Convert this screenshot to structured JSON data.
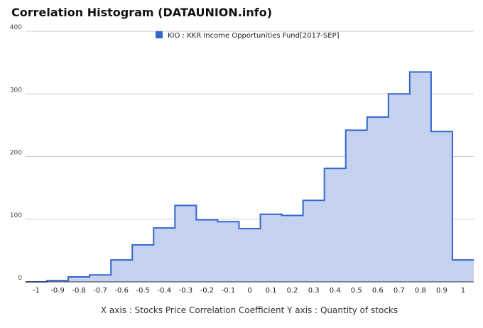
{
  "chart_data": {
    "type": "area",
    "title": "Correlation Histogram (DATAUNION.info)",
    "x_caption": "X axis : Stocks Price Correlation Coefficient  Y axis : Quantity of stocks",
    "x_tick_labels": [
      "-1",
      "-0.9",
      "-0.8",
      "-0.7",
      "-0.6",
      "-0.5",
      "-0.4",
      "-0.3",
      "-0.2",
      "-0.1",
      "0",
      "0.1",
      "0.2",
      "0.3",
      "0.4",
      "0.5",
      "0.6",
      "0.7",
      "0.8",
      "0.9",
      "1"
    ],
    "y_tick_labels": [
      "0",
      "100",
      "200",
      "300",
      "400"
    ],
    "ylim": [
      0,
      400
    ],
    "xlim": [
      -1.05,
      1.05
    ],
    "grid": true,
    "legend_position": "top",
    "series": [
      {
        "name": "KIO : KKR Income Opportunities Fund[2017-SEP]",
        "color": "#3366cc",
        "fill": "#c5d1f1",
        "x": [
          -1,
          -0.9,
          -0.8,
          -0.7,
          -0.6,
          -0.5,
          -0.4,
          -0.3,
          -0.2,
          -0.1,
          0,
          0.1,
          0.2,
          0.3,
          0.4,
          0.5,
          0.6,
          0.7,
          0.8,
          0.9,
          1
        ],
        "values": [
          0,
          2,
          8,
          11,
          35,
          59,
          86,
          122,
          99,
          96,
          85,
          108,
          106,
          130,
          181,
          242,
          263,
          300,
          335,
          240,
          35
        ]
      }
    ]
  }
}
